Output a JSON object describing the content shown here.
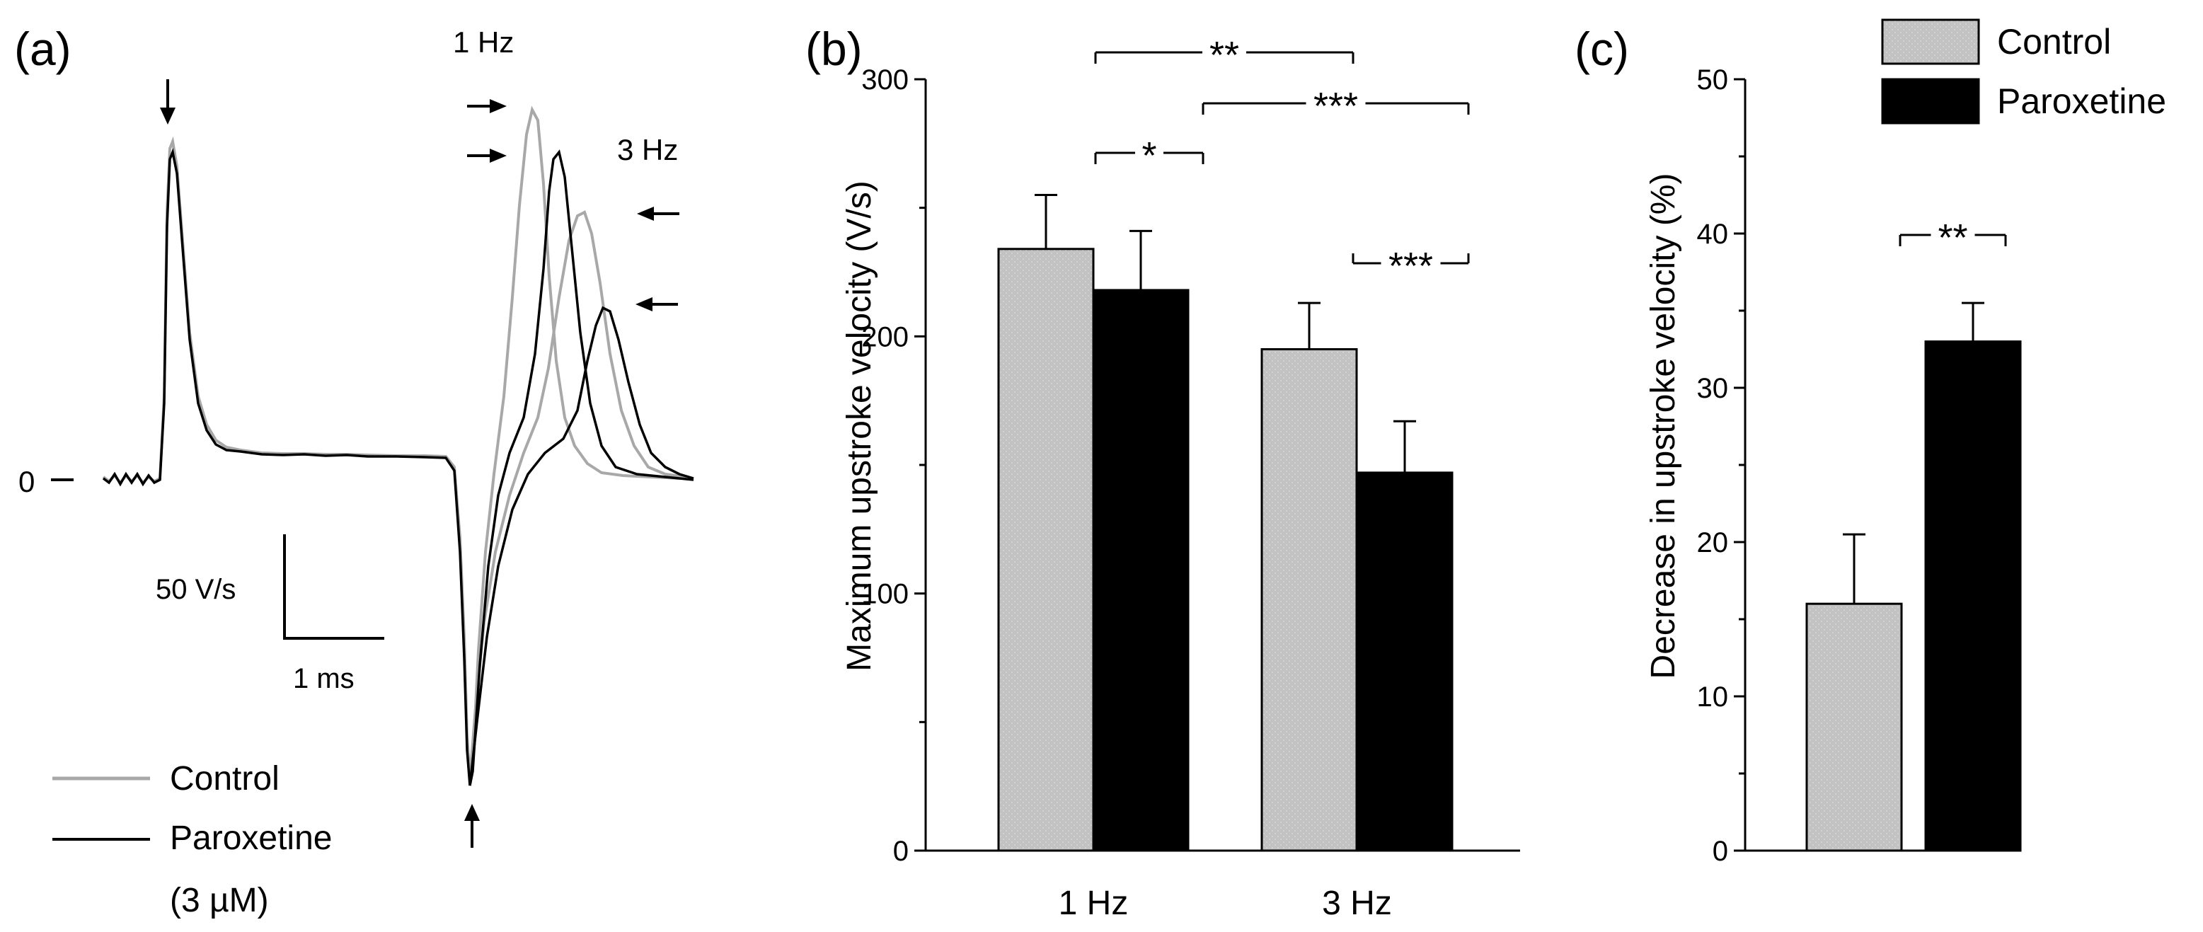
{
  "panel_a": {
    "label": "(a)",
    "freq_1hz": "1 Hz",
    "freq_3hz": "3 Hz",
    "zero_label": "0",
    "scale_y": "50 V/s",
    "scale_x": "1 ms",
    "legend": {
      "control": "Control",
      "paroxetine": "Paroxetine",
      "concentration": "(3 µM)"
    }
  },
  "chart_data": [
    {
      "type": "bar",
      "panel": "(b)",
      "title": "",
      "xlabel": "",
      "ylabel": "Maximum upstroke velocity (V/s)",
      "categories": [
        "1 Hz",
        "3 Hz"
      ],
      "ylim": [
        0,
        300
      ],
      "yticks": [
        "0",
        "100",
        "200",
        "300"
      ],
      "series": [
        {
          "name": "Control",
          "color": "#c0c0c0",
          "values": [
            234,
            195
          ],
          "errors": [
            21,
            18
          ]
        },
        {
          "name": "Paroxetine",
          "color": "#000000",
          "values": [
            218,
            147
          ],
          "errors": [
            23,
            20
          ]
        }
      ],
      "significance": [
        {
          "label": "**",
          "between": "Control 1 Hz vs Control 3 Hz"
        },
        {
          "label": "***",
          "between": "Paroxetine 1 Hz vs Paroxetine 3 Hz"
        },
        {
          "label": "*",
          "between": "Control 1 Hz vs Paroxetine 1 Hz"
        },
        {
          "label": "***",
          "between": "Control 3 Hz vs Paroxetine 3 Hz"
        }
      ]
    },
    {
      "type": "bar",
      "panel": "(c)",
      "title": "",
      "xlabel": "",
      "ylabel": "Decrease in upstroke velocity (%)",
      "categories": [
        "Control",
        "Paroxetine"
      ],
      "ylim": [
        0,
        50
      ],
      "yticks": [
        "0",
        "10",
        "20",
        "30",
        "40",
        "50"
      ],
      "values": [
        16,
        33
      ],
      "errors": [
        4.5,
        2.5
      ],
      "colors": [
        "#c0c0c0",
        "#000000"
      ],
      "legend": [
        "Control",
        "Paroxetine"
      ],
      "significance": [
        {
          "label": "**",
          "between": "Control vs Paroxetine"
        }
      ]
    }
  ]
}
